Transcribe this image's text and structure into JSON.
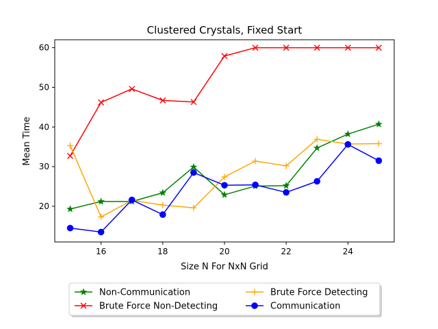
{
  "chart_data": {
    "type": "line",
    "title": "Clustered Crystals, Fixed Start",
    "xlabel": "Size N For NxN Grid",
    "ylabel": "Mean Time",
    "x": [
      15,
      16,
      17,
      18,
      19,
      20,
      21,
      22,
      23,
      24,
      25
    ],
    "xlim": [
      14.5,
      25.5
    ],
    "ylim": [
      11,
      62
    ],
    "xticks": [
      "16",
      "18",
      "20",
      "22",
      "24"
    ],
    "yticks": [
      "20",
      "30",
      "40",
      "50",
      "60"
    ],
    "grid": false,
    "legend_position": "below",
    "series": [
      {
        "name": "Non-Communication",
        "color": "#008000",
        "marker": "star",
        "values": [
          19.3,
          21.2,
          21.2,
          23.4,
          29.9,
          22.9,
          25.1,
          25.2,
          34.7,
          38.2,
          40.7
        ]
      },
      {
        "name": "Brute Force Non-Detecting",
        "color": "#ff0000",
        "marker": "x",
        "values": [
          32.7,
          46.2,
          49.6,
          46.7,
          46.3,
          57.9,
          60.0,
          60.0,
          60.0,
          60.0,
          60.0
        ]
      },
      {
        "name": "Brute Force Detecting",
        "color": "#ffa500",
        "marker": "plus",
        "values": [
          35.3,
          17.3,
          21.5,
          20.3,
          19.6,
          27.4,
          31.4,
          30.2,
          36.9,
          35.7,
          35.8
        ]
      },
      {
        "name": "Communication",
        "color": "#0000ff",
        "marker": "circle",
        "values": [
          14.5,
          13.5,
          21.6,
          17.9,
          28.5,
          25.3,
          25.4,
          23.5,
          26.3,
          35.6,
          31.5
        ]
      }
    ]
  }
}
